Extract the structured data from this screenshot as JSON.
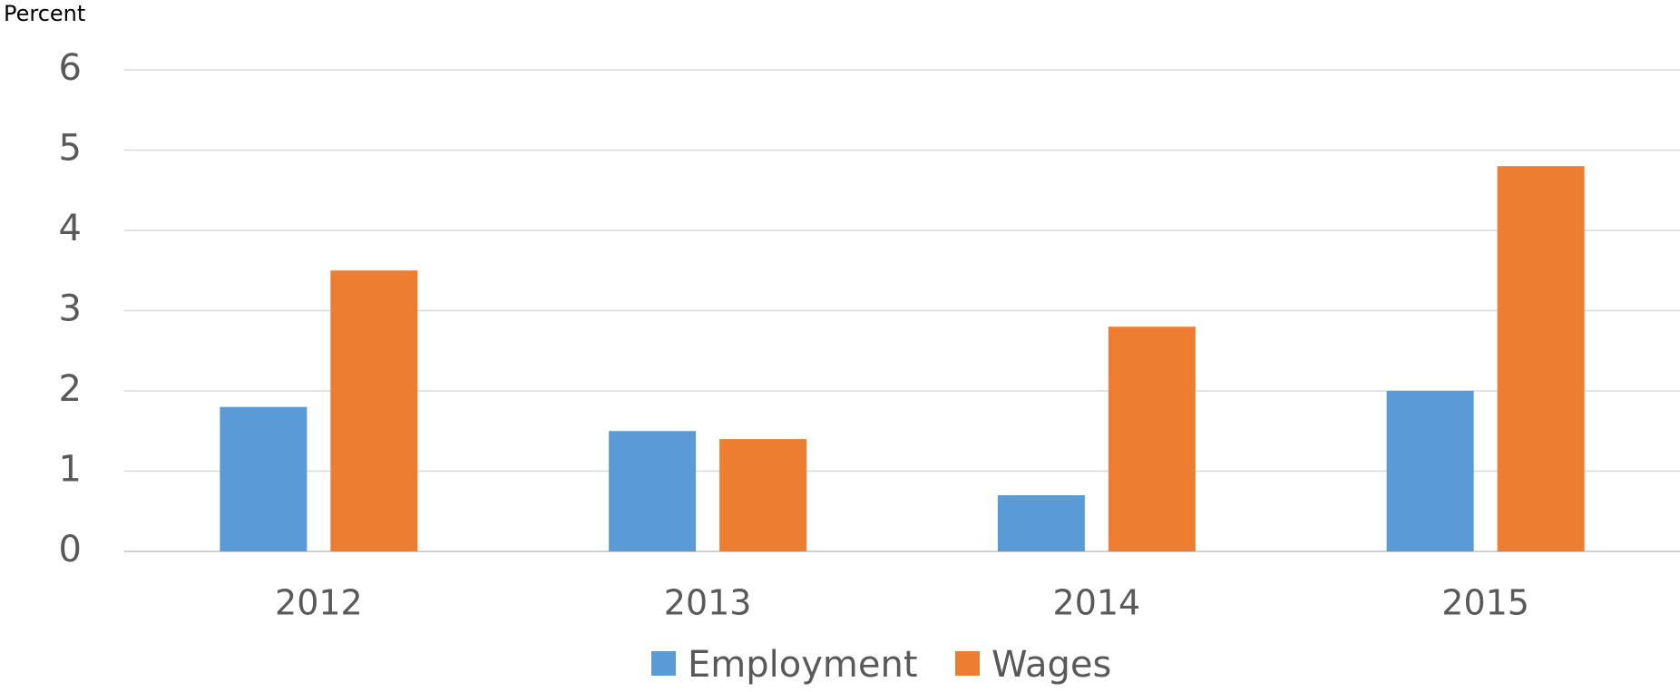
{
  "chart_data": {
    "type": "bar",
    "y_label": "Percent",
    "categories": [
      "2012",
      "2013",
      "2014",
      "2015"
    ],
    "series": [
      {
        "name": "Employment",
        "color": "#5b9bd5",
        "values": [
          1.8,
          1.5,
          0.7,
          2.0
        ]
      },
      {
        "name": "Wages",
        "color": "#ed7d31",
        "values": [
          3.5,
          1.4,
          2.8,
          4.8
        ]
      }
    ],
    "ylim": [
      0,
      6
    ],
    "yticks": [
      0,
      1,
      2,
      3,
      4,
      5,
      6
    ],
    "grid": true,
    "legend": "bottom"
  }
}
